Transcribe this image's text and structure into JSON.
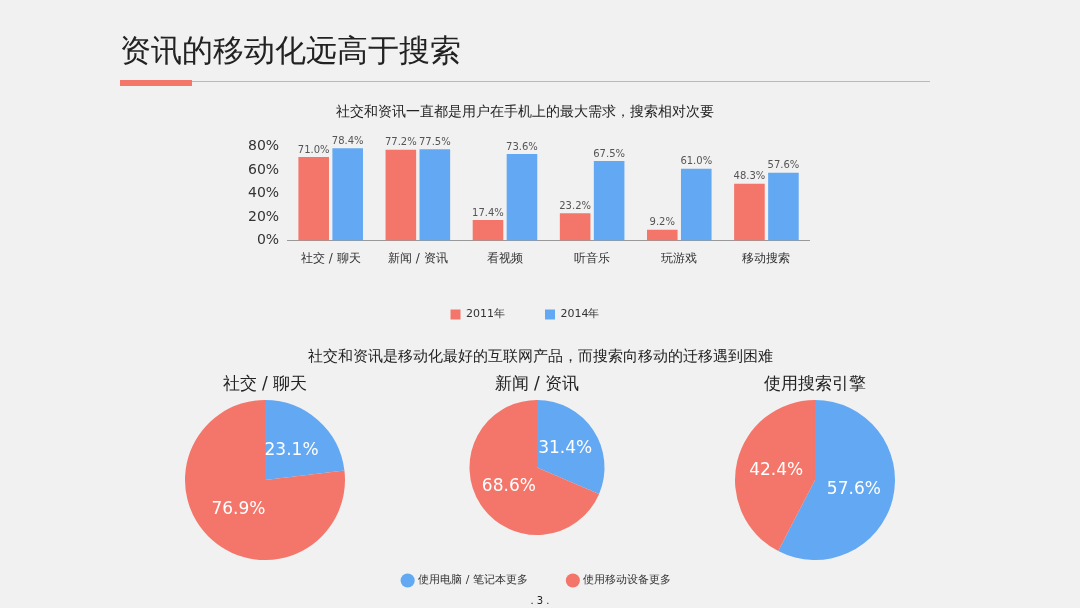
{
  "chart_data": [
    {
      "type": "bar",
      "title": "资讯的移动化远高于搜索",
      "subtitle": "社交和资讯一直都是用户在手机上的最大需求，搜索相对次要",
      "categories": [
        "社交 / 聊天",
        "新闻 / 资讯",
        "看视频",
        "听音乐",
        "玩游戏",
        "移动搜索"
      ],
      "series": [
        {
          "name": "2011年",
          "color": "#f4766a",
          "values": [
            71.0,
            77.2,
            17.4,
            23.2,
            9.2,
            48.3
          ],
          "value_labels": [
            "71.0%",
            "77.2%",
            "17.4%",
            "23.2%",
            "9.2%",
            "48.3%"
          ]
        },
        {
          "name": "2014年",
          "color": "#62a8f2",
          "values": [
            78.4,
            77.5,
            73.6,
            67.5,
            61.0,
            57.6
          ],
          "value_labels": [
            "78.4%",
            "77.5%",
            "73.6%",
            "67.5%",
            "61.0%",
            "57.6%"
          ]
        }
      ],
      "ylim": [
        0,
        80
      ],
      "yticks": [
        {
          "value": 0,
          "label": "0%"
        },
        {
          "value": 20,
          "label": "20%"
        },
        {
          "value": 40,
          "label": "40%"
        },
        {
          "value": 60,
          "label": "60%"
        },
        {
          "value": 80,
          "label": "80%"
        }
      ],
      "grid": false,
      "legend": "bottom"
    },
    {
      "type": "pie",
      "title": "社交 / 聊天",
      "annotations": [
        "社交和资讯是移动化最好的互联网产品，而搜索向移动的迁移遇到困难"
      ],
      "categories": [
        null,
        null
      ],
      "values": [
        23.1,
        76.9
      ],
      "value_labels": [
        "23.1%",
        "76.9%"
      ],
      "colors": [
        "#62a8f2",
        "#f4766a"
      ],
      "legend": false
    },
    {
      "type": "pie",
      "title": "新闻 / 资讯",
      "categories": [
        "使用电脑 / 笔记本更多",
        "使用移动设备更多"
      ],
      "values": [
        31.4,
        68.6
      ],
      "value_labels": [
        "31.4%",
        "68.6%"
      ],
      "colors": [
        "#62a8f2",
        "#f4766a"
      ],
      "legend": "bottom"
    },
    {
      "type": "pie",
      "title": "使用搜索引擎",
      "annotations": [
        ". 3 ."
      ],
      "categories": [
        null,
        null
      ],
      "values": [
        57.6,
        42.4
      ],
      "value_labels": [
        "57.6%",
        "42.4%"
      ],
      "colors": [
        "#62a8f2",
        "#f4766a"
      ],
      "legend": false
    }
  ]
}
